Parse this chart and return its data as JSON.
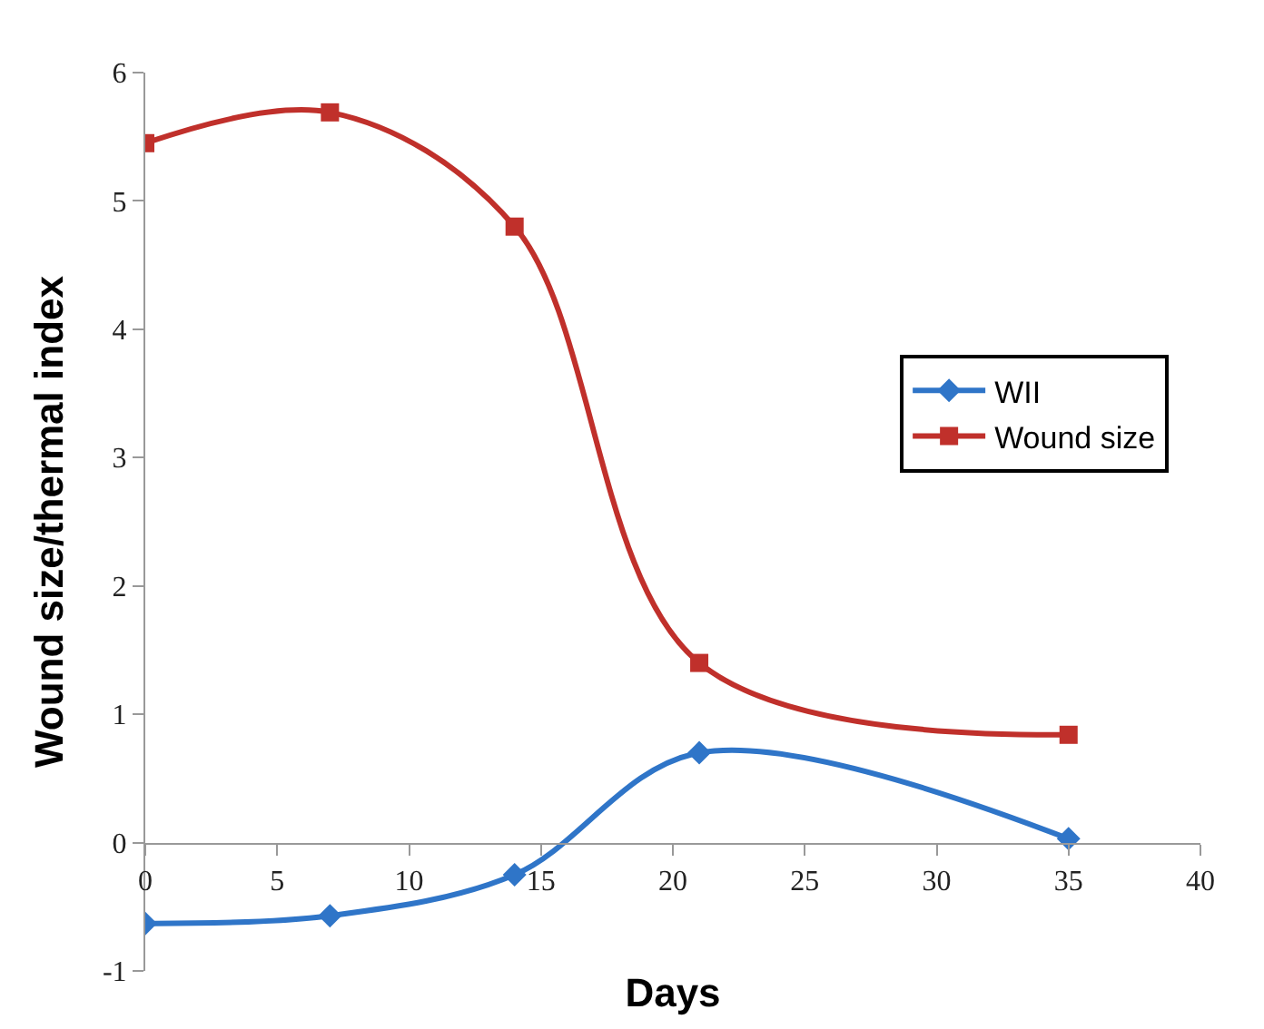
{
  "chart_data": {
    "type": "line",
    "xlabel": "Days",
    "ylabel": "Wound size/thermal index",
    "series": [
      {
        "name": "WII",
        "color": "#2f75c8",
        "marker": "diamond",
        "x": [
          0,
          7,
          14,
          21,
          35
        ],
        "values": [
          -0.63,
          -0.57,
          -0.25,
          0.7,
          0.03
        ]
      },
      {
        "name": "Wound size",
        "color": "#c0302b",
        "marker": "square",
        "x": [
          0,
          7,
          14,
          21,
          35
        ],
        "values": [
          5.45,
          5.69,
          4.8,
          1.4,
          0.84
        ]
      }
    ],
    "xlim": [
      0,
      40
    ],
    "xticks": [
      0,
      5,
      10,
      15,
      20,
      25,
      30,
      35,
      40
    ],
    "ylim": [
      -1,
      6
    ],
    "yticks": [
      -1,
      0,
      1,
      2,
      3,
      4,
      5,
      6
    ],
    "legend": "right",
    "line_style": "solid"
  }
}
